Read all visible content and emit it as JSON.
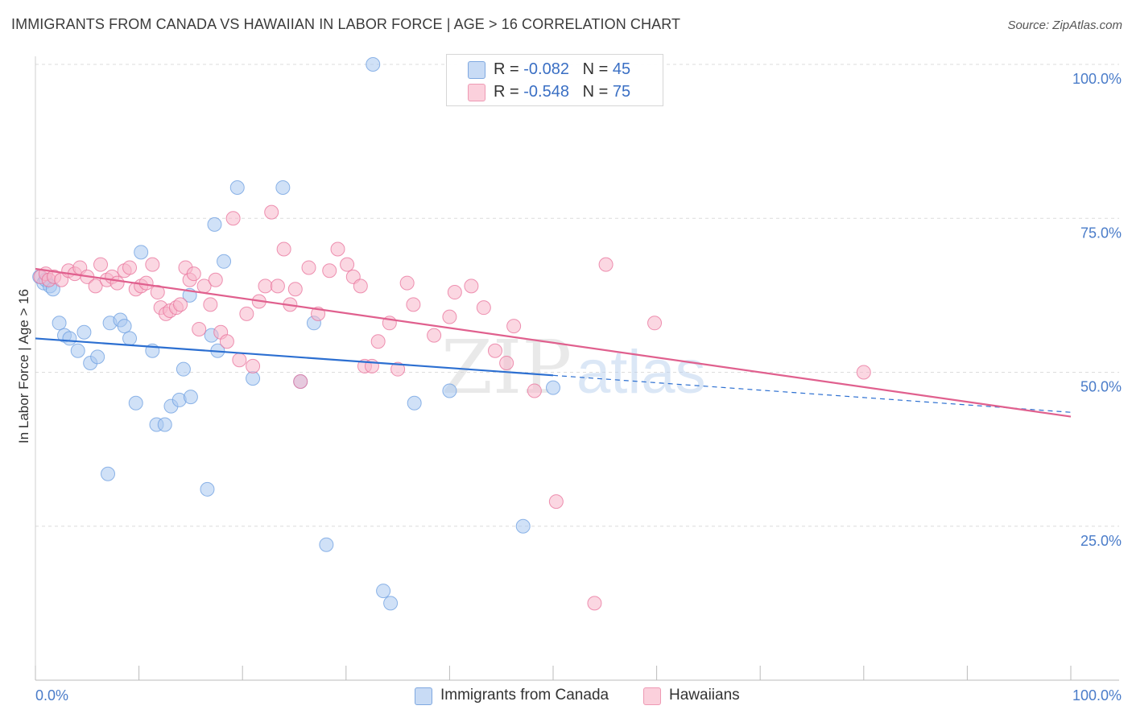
{
  "title": "IMMIGRANTS FROM CANADA VS HAWAIIAN IN LABOR FORCE | AGE > 16 CORRELATION CHART",
  "source": "Source: ZipAtlas.com",
  "watermark": {
    "part1": "ZIP",
    "part2": "atlas"
  },
  "stats": [
    {
      "r_label": "R = ",
      "r_value": "-0.082",
      "n_label": "N = ",
      "n_value": "45",
      "color": "#aac8f0"
    },
    {
      "r_label": "R = ",
      "r_value": "-0.548",
      "n_label": "N = ",
      "n_value": "75",
      "color": "#f7b7ca"
    }
  ],
  "legend": [
    {
      "label": "Immigrants from Canada",
      "color": "#aac8f0"
    },
    {
      "label": "Hawaiians",
      "color": "#f7b7ca"
    }
  ],
  "chart_data": {
    "type": "scatter",
    "title": "IMMIGRANTS FROM CANADA VS HAWAIIAN IN LABOR FORCE | AGE > 16 CORRELATION CHART",
    "xlabel": "",
    "ylabel": "In Labor Force | Age > 16",
    "xlim": [
      0,
      100
    ],
    "ylim": [
      0,
      100
    ],
    "x_tick_labels": [
      "0.0%",
      "100.0%"
    ],
    "y_ticks": [
      25,
      50,
      75,
      100
    ],
    "y_tick_labels": [
      "25.0%",
      "50.0%",
      "75.0%",
      "100.0%"
    ],
    "grid": true,
    "legend_position": "bottom-center",
    "series": [
      {
        "name": "Immigrants from Canada",
        "color": "#6b9ee0",
        "fill": "#aac8f0",
        "trend": {
          "x0": 0,
          "y0": 55.5,
          "x1": 50,
          "y1": 49.5,
          "dashed_to_x": 100,
          "dashed_to_y": 43.5
        },
        "x": [
          0.4,
          0.8,
          1.0,
          1.4,
          1.7,
          2.3,
          2.8,
          3.3,
          4.1,
          4.7,
          5.3,
          7.0,
          7.2,
          6.0,
          8.2,
          8.6,
          9.1,
          10.2,
          11.3,
          9.7,
          11.7,
          12.5,
          13.1,
          13.9,
          14.3,
          15.0,
          16.6,
          17.0,
          14.9,
          17.6,
          18.2,
          17.3,
          19.5,
          23.9,
          21.0,
          25.6,
          26.9,
          28.1,
          32.6,
          33.6,
          34.3,
          36.6,
          40.0,
          47.1,
          50.0
        ],
        "y": [
          65.5,
          64.5,
          65.0,
          64.0,
          63.5,
          58.0,
          56.0,
          55.5,
          53.5,
          56.5,
          51.5,
          33.5,
          58.0,
          52.5,
          58.5,
          57.5,
          55.5,
          69.5,
          53.5,
          45.0,
          41.5,
          41.5,
          44.5,
          45.5,
          50.5,
          46.0,
          31.0,
          56.0,
          62.5,
          53.5,
          68.0,
          74.0,
          80.0,
          80.0,
          49.0,
          48.5,
          58.0,
          22.0,
          100.0,
          14.5,
          12.5,
          45.0,
          47.0,
          25.0,
          47.5
        ]
      },
      {
        "name": "Hawaiians",
        "color": "#e8709a",
        "fill": "#f7b7ca",
        "trend": {
          "x0": 0,
          "y0": 66.8,
          "x1": 100,
          "y1": 42.8
        },
        "x": [
          0.5,
          1.0,
          1.3,
          1.8,
          2.5,
          3.2,
          3.8,
          4.3,
          5.0,
          5.8,
          6.3,
          6.9,
          7.4,
          7.9,
          8.6,
          9.1,
          9.7,
          10.2,
          10.7,
          11.3,
          11.8,
          12.1,
          12.6,
          13.0,
          13.6,
          14.0,
          14.5,
          14.9,
          15.3,
          15.8,
          16.3,
          16.9,
          17.4,
          17.9,
          18.5,
          19.1,
          19.7,
          20.4,
          21.0,
          21.6,
          22.2,
          22.8,
          23.4,
          24.0,
          24.6,
          25.1,
          25.6,
          26.4,
          27.3,
          28.4,
          29.2,
          30.1,
          30.7,
          31.4,
          31.8,
          32.5,
          33.1,
          34.2,
          35.0,
          35.9,
          36.5,
          38.5,
          40.0,
          40.5,
          42.1,
          43.3,
          44.4,
          45.5,
          46.2,
          48.2,
          50.3,
          54.0,
          55.1,
          59.8,
          80.0
        ],
        "y": [
          65.5,
          66.0,
          65.0,
          65.5,
          65.0,
          66.5,
          66.0,
          67.0,
          65.5,
          64.0,
          67.5,
          65.0,
          65.5,
          64.5,
          66.5,
          67.0,
          63.5,
          64.0,
          64.5,
          67.5,
          63.0,
          60.5,
          59.5,
          60.0,
          60.5,
          61.0,
          67.0,
          65.0,
          66.0,
          57.0,
          64.0,
          61.0,
          65.0,
          56.5,
          55.0,
          75.0,
          52.0,
          59.5,
          51.0,
          61.5,
          64.0,
          76.0,
          64.0,
          70.0,
          61.0,
          63.5,
          48.5,
          67.0,
          59.5,
          66.5,
          70.0,
          67.5,
          65.5,
          64.0,
          51.0,
          51.0,
          55.0,
          58.0,
          50.5,
          64.5,
          61.0,
          56.0,
          59.0,
          63.0,
          64.0,
          60.5,
          53.5,
          51.5,
          57.5,
          47.0,
          29.0,
          12.5,
          67.5,
          58.0,
          50.0
        ]
      }
    ]
  }
}
